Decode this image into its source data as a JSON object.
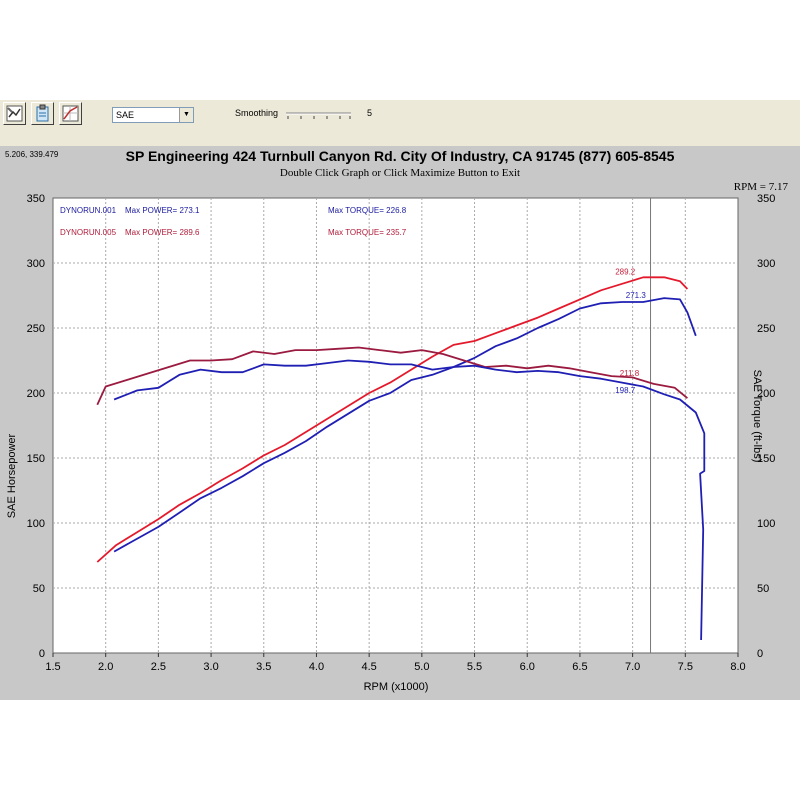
{
  "toolbar": {
    "buttons": [
      "wrench-chart-icon",
      "clipboard-icon",
      "chart-settings-icon"
    ],
    "mode_value": "SAE",
    "smoothing_label": "Smoothing",
    "smoothing_value": "5"
  },
  "cursor_readout": "5.206, 339.479",
  "rpm_readout": "RPM = 7.17",
  "chart_data": {
    "type": "line",
    "title": "SP Engineering 424 Turnbull Canyon Rd. City Of Industry, CA 91745 (877) 605-8545",
    "subtitle": "Double Click Graph or Click Maximize Button to Exit",
    "xlabel": "RPM (x1000)",
    "ylabel": "SAE Horsepower",
    "y2label": "SAE Torque (ft-lbs)",
    "xlim": [
      1.5,
      8.0
    ],
    "ylim": [
      0,
      350
    ],
    "y2lim": [
      0,
      350
    ],
    "xticks": [
      "1.5",
      "2.0",
      "2.5",
      "3.0",
      "3.5",
      "4.0",
      "4.5",
      "5.0",
      "5.5",
      "6.0",
      "6.5",
      "7.0",
      "7.5",
      "8.0"
    ],
    "yticks": [
      "0",
      "50",
      "100",
      "150",
      "200",
      "250",
      "300",
      "350"
    ],
    "grid": true,
    "cursor_x": 7.17,
    "legend": [
      {
        "run": "DYNORUN.001",
        "power_label": "Max POWER= 273.1",
        "torque_label": "Max TORQUE= 226.8",
        "color": "#1a1aa0"
      },
      {
        "run": "DYNORUN.005",
        "power_label": "Max POWER= 289.6",
        "torque_label": "Max TORQUE= 235.7",
        "color": "#b01c3a"
      }
    ],
    "series": [
      {
        "name": "DYNORUN.005 Power",
        "color": "#e41a2c",
        "x": [
          1.92,
          2.1,
          2.3,
          2.5,
          2.7,
          2.9,
          3.1,
          3.3,
          3.5,
          3.7,
          3.9,
          4.1,
          4.3,
          4.5,
          4.7,
          4.9,
          5.1,
          5.3,
          5.5,
          5.7,
          5.9,
          6.1,
          6.3,
          6.5,
          6.7,
          6.9,
          7.1,
          7.3,
          7.45,
          7.52
        ],
        "y": [
          70,
          83,
          93,
          103,
          114,
          123,
          133,
          142,
          152,
          160,
          170,
          180,
          190,
          200,
          208,
          218,
          228,
          237,
          240,
          246,
          252,
          258,
          265,
          272,
          279,
          284,
          289,
          289,
          286,
          280
        ]
      },
      {
        "name": "DYNORUN.001 Power",
        "color": "#1f1fb4",
        "x": [
          2.08,
          2.3,
          2.5,
          2.7,
          2.9,
          3.1,
          3.3,
          3.5,
          3.7,
          3.9,
          4.1,
          4.3,
          4.5,
          4.7,
          4.9,
          5.1,
          5.3,
          5.5,
          5.7,
          5.9,
          6.1,
          6.3,
          6.5,
          6.7,
          6.9,
          7.1,
          7.3,
          7.45,
          7.52,
          7.6
        ],
        "y": [
          78,
          88,
          97,
          108,
          119,
          127,
          136,
          146,
          154,
          163,
          174,
          184,
          194,
          200,
          210,
          214,
          220,
          227,
          236,
          242,
          250,
          257,
          265,
          269,
          270,
          270,
          273,
          272,
          262,
          244
        ]
      },
      {
        "name": "DYNORUN.005 Torque",
        "color": "#9a1a40",
        "x": [
          1.92,
          2.0,
          2.2,
          2.4,
          2.6,
          2.8,
          3.0,
          3.2,
          3.4,
          3.6,
          3.8,
          4.0,
          4.2,
          4.4,
          4.6,
          4.8,
          5.0,
          5.2,
          5.4,
          5.6,
          5.8,
          6.0,
          6.2,
          6.4,
          6.6,
          6.8,
          7.0,
          7.2,
          7.4,
          7.52
        ],
        "y": [
          191,
          205,
          210,
          215,
          220,
          225,
          225,
          226,
          232,
          230,
          233,
          233,
          234,
          235,
          233,
          231,
          233,
          230,
          225,
          220,
          221,
          219,
          221,
          219,
          216,
          213,
          212,
          207,
          204,
          196
        ]
      },
      {
        "name": "DYNORUN.001 Torque",
        "color": "#1f1fb4",
        "x": [
          2.08,
          2.3,
          2.5,
          2.7,
          2.9,
          3.1,
          3.3,
          3.5,
          3.7,
          3.9,
          4.1,
          4.3,
          4.5,
          4.7,
          4.9,
          5.1,
          5.3,
          5.5,
          5.7,
          5.9,
          6.1,
          6.3,
          6.5,
          6.7,
          6.9,
          7.1,
          7.3,
          7.45,
          7.6,
          7.68,
          7.68,
          7.64,
          7.67,
          7.65
        ],
        "y": [
          195,
          202,
          204,
          214,
          218,
          216,
          216,
          222,
          221,
          221,
          223,
          225,
          224,
          222,
          222,
          218,
          220,
          221,
          218,
          216,
          217,
          216,
          213,
          211,
          208,
          205,
          199,
          195,
          185,
          169,
          140,
          138,
          95,
          10
        ]
      }
    ],
    "annotations": [
      {
        "text": "289.2",
        "x": 6.93,
        "y": 291,
        "color": "#c81e3a"
      },
      {
        "text": "271.3",
        "x": 7.03,
        "y": 273,
        "color": "#1f1fb4"
      },
      {
        "text": "211.8",
        "x": 6.97,
        "y": 213,
        "color": "#c81e3a"
      },
      {
        "text": "198.7",
        "x": 6.93,
        "y": 200,
        "color": "#1f1fb4"
      }
    ]
  }
}
